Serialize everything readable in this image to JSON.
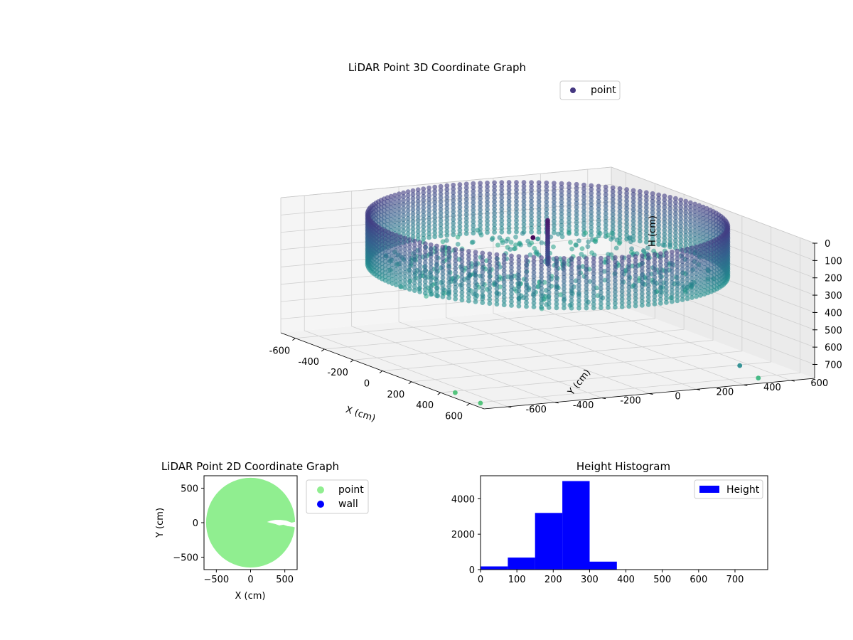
{
  "chart_data": [
    {
      "type": "scatter3d",
      "title": "LiDAR Point 3D Coordinate Graph",
      "xlabel": "X (cm)",
      "ylabel": "Y (cm)",
      "zlabel": "H (cm)",
      "xlim": [
        -700,
        700
      ],
      "ylim": [
        -700,
        700
      ],
      "zlim": [
        0,
        780
      ],
      "x_ticks": [
        -600,
        -400,
        -200,
        0,
        200,
        400,
        600
      ],
      "y_ticks": [
        -600,
        -400,
        -200,
        0,
        200,
        400,
        600
      ],
      "z_ticks": [
        0,
        100,
        200,
        300,
        400,
        500,
        600,
        700
      ],
      "z_inverted": true,
      "grid": true,
      "legend": {
        "placement": "top-right",
        "entries": [
          {
            "label": "point",
            "color": "#453781"
          }
        ]
      },
      "series": [
        {
          "name": "point",
          "colormap": "viridis",
          "structure": "ring wall of points at radius 650 cm with heights 0-300 cm plus interior floor points",
          "ring_radius": 650,
          "height_range": [
            0,
            300
          ],
          "outliers": [
            {
              "x": 640,
              "y": 420,
              "h": 690
            },
            {
              "x": 670,
              "y": 480,
              "h": 760
            },
            {
              "x": 420,
              "y": -650,
              "h": 780
            },
            {
              "x": 610,
              "y": -660,
              "h": 780
            }
          ]
        }
      ]
    },
    {
      "type": "scatter",
      "title": "LiDAR Point 2D Coordinate Graph",
      "xlabel": "X (cm)",
      "ylabel": "Y (cm)",
      "xlim": [
        -680,
        680
      ],
      "ylim": [
        -680,
        680
      ],
      "x_ticks": [
        -500,
        0,
        500
      ],
      "y_ticks": [
        -500,
        0,
        500
      ],
      "legend": {
        "placement": "outside-right",
        "entries": [
          {
            "label": "point",
            "color": "#90ee90"
          },
          {
            "label": "wall",
            "color": "#0000ff"
          }
        ]
      },
      "disk_radius": 650,
      "gap_polygon": [
        [
          240,
          10
        ],
        [
          300,
          -5
        ],
        [
          360,
          -20
        ],
        [
          420,
          -40
        ],
        [
          480,
          -30
        ],
        [
          540,
          -50
        ],
        [
          620,
          -60
        ],
        [
          680,
          -80
        ],
        [
          680,
          20
        ],
        [
          600,
          0
        ],
        [
          520,
          30
        ],
        [
          440,
          40
        ],
        [
          360,
          40
        ],
        [
          300,
          30
        ]
      ]
    },
    {
      "type": "histogram",
      "title": "Height Histogram",
      "xlim": [
        0,
        790
      ],
      "ylim": [
        0,
        5300
      ],
      "x_ticks": [
        0,
        100,
        200,
        300,
        400,
        500,
        600,
        700
      ],
      "y_ticks": [
        0,
        2000,
        4000
      ],
      "legend": {
        "placement": "top-right",
        "entries": [
          {
            "label": "Height",
            "color": "#0000ff"
          }
        ]
      },
      "bins": [
        {
          "start": 0,
          "end": 75,
          "count": 180
        },
        {
          "start": 75,
          "end": 150,
          "count": 680
        },
        {
          "start": 150,
          "end": 225,
          "count": 3200
        },
        {
          "start": 225,
          "end": 300,
          "count": 5000
        },
        {
          "start": 300,
          "end": 375,
          "count": 450
        },
        {
          "start": 375,
          "end": 450,
          "count": 0
        },
        {
          "start": 450,
          "end": 525,
          "count": 0
        },
        {
          "start": 525,
          "end": 600,
          "count": 0
        },
        {
          "start": 600,
          "end": 675,
          "count": 0
        },
        {
          "start": 675,
          "end": 750,
          "count": 5
        }
      ]
    }
  ]
}
